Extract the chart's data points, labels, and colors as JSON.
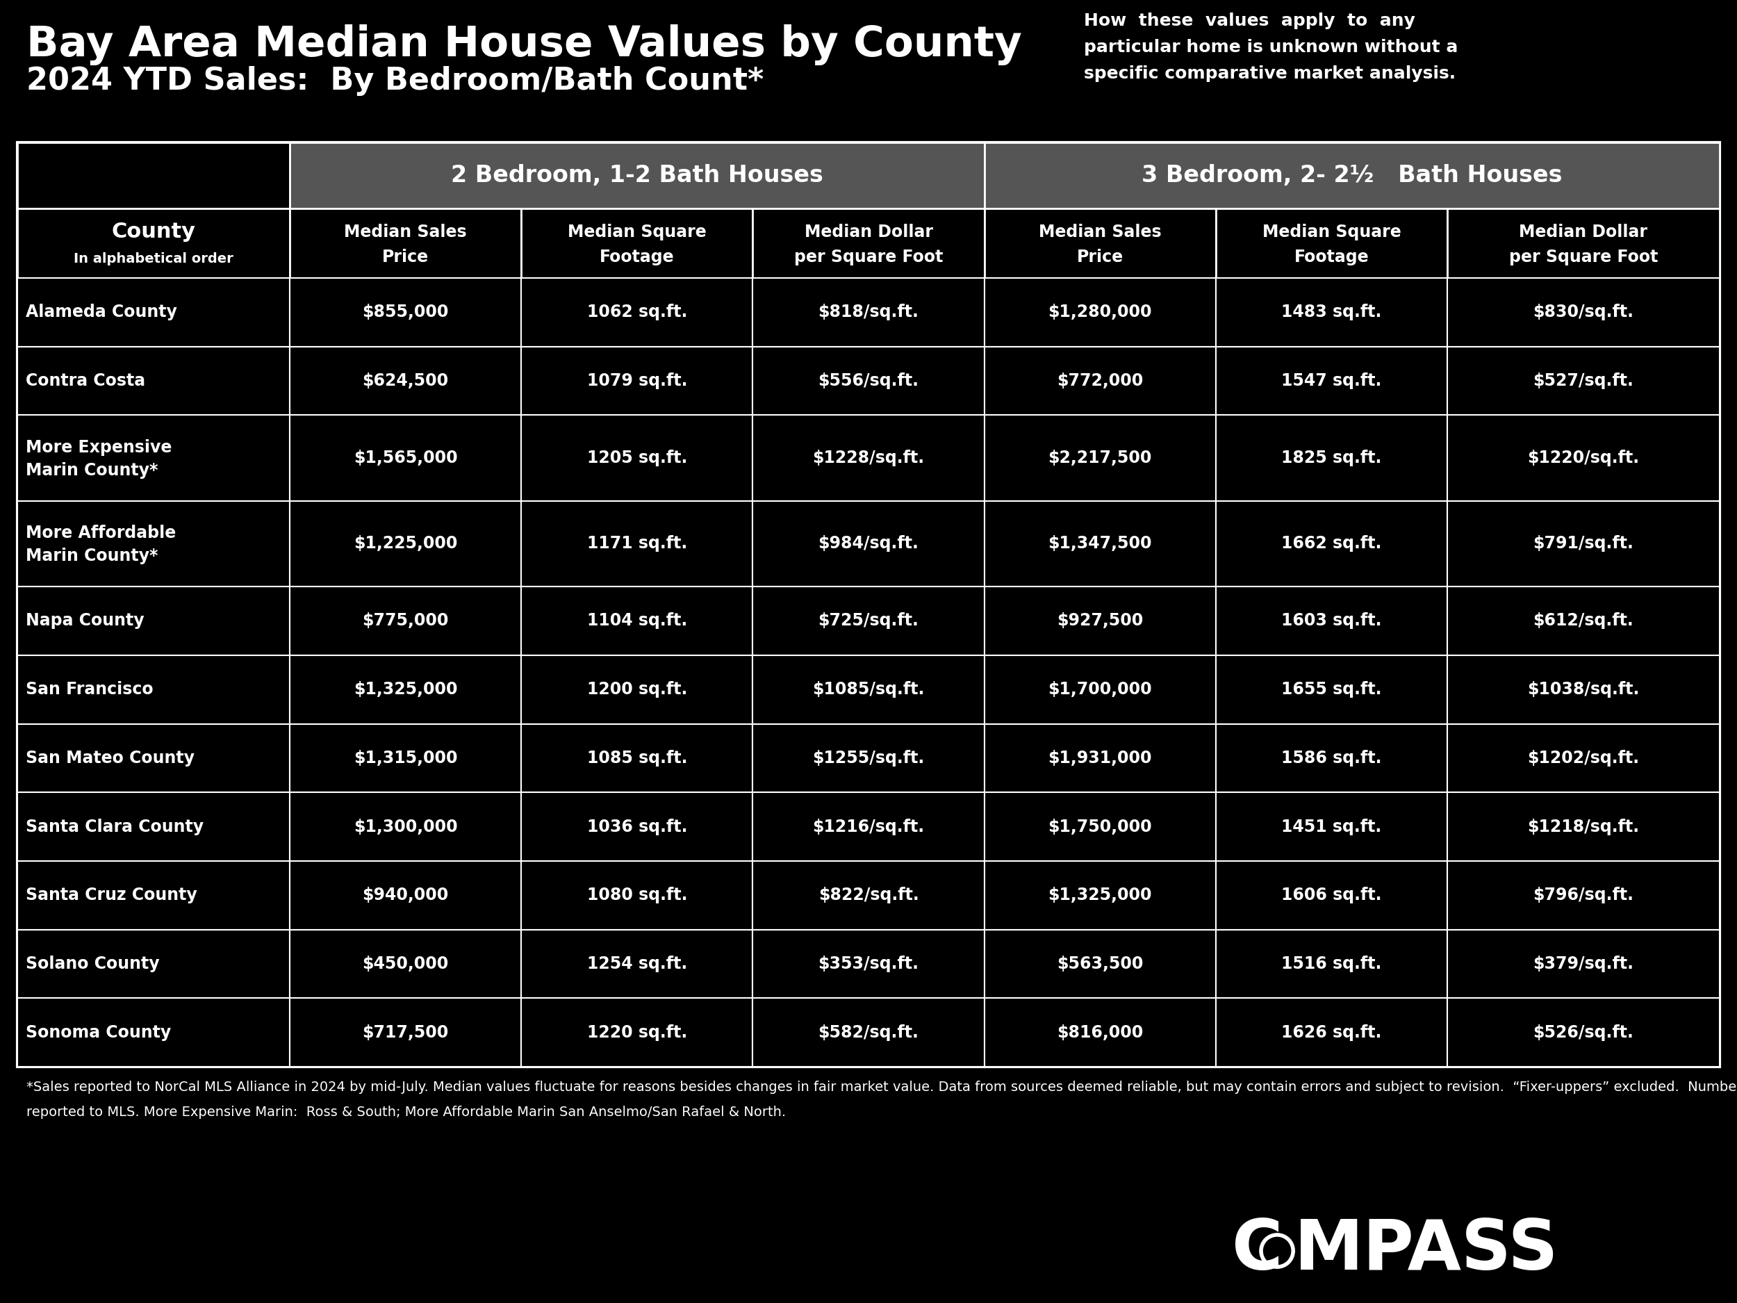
{
  "title_line1": "Bay Area Median House Values by County",
  "title_line2": "2024 YTD Sales:  By Bedroom/Bath Count*",
  "disclaimer": "How  these  values  apply  to  any\nparticular home is unknown without a\nspecific comparative market analysis.",
  "col_header1": "2 Bedroom, 1-2 Bath Houses",
  "col_header2": "3 Bedroom, 2- 2½   Bath Houses",
  "sub_headers": [
    "Median Sales\nPrice",
    "Median Square\nFootage",
    "Median Dollar\nper Square Foot",
    "Median Sales\nPrice",
    "Median Square\nFootage",
    "Median Dollar\nper Square Foot"
  ],
  "rows": [
    {
      "county": "Alameda County",
      "county_line2": "",
      "b2_price": "$855,000",
      "b2_sqft": "1062 sq.ft.",
      "b2_dollar": "$818/sq.ft.",
      "b3_price": "$1,280,000",
      "b3_sqft": "1483 sq.ft.",
      "b3_dollar": "$830/sq.ft."
    },
    {
      "county": "Contra Costa",
      "county_line2": "",
      "b2_price": "$624,500",
      "b2_sqft": "1079 sq.ft.",
      "b2_dollar": "$556/sq.ft.",
      "b3_price": "$772,000",
      "b3_sqft": "1547 sq.ft.",
      "b3_dollar": "$527/sq.ft."
    },
    {
      "county": "More Expensive",
      "county_line2": "Marin County*",
      "b2_price": "$1,565,000",
      "b2_sqft": "1205 sq.ft.",
      "b2_dollar": "$1228/sq.ft.",
      "b3_price": "$2,217,500",
      "b3_sqft": "1825 sq.ft.",
      "b3_dollar": "$1220/sq.ft."
    },
    {
      "county": "More Affordable",
      "county_line2": "Marin County*",
      "b2_price": "$1,225,000",
      "b2_sqft": "1171 sq.ft.",
      "b2_dollar": "$984/sq.ft.",
      "b3_price": "$1,347,500",
      "b3_sqft": "1662 sq.ft.",
      "b3_dollar": "$791/sq.ft."
    },
    {
      "county": "Napa County",
      "county_line2": "",
      "b2_price": "$775,000",
      "b2_sqft": "1104 sq.ft.",
      "b2_dollar": "$725/sq.ft.",
      "b3_price": "$927,500",
      "b3_sqft": "1603 sq.ft.",
      "b3_dollar": "$612/sq.ft."
    },
    {
      "county": "San Francisco",
      "county_line2": "",
      "b2_price": "$1,325,000",
      "b2_sqft": "1200 sq.ft.",
      "b2_dollar": "$1085/sq.ft.",
      "b3_price": "$1,700,000",
      "b3_sqft": "1655 sq.ft.",
      "b3_dollar": "$1038/sq.ft."
    },
    {
      "county": "San Mateo County",
      "county_line2": "",
      "b2_price": "$1,315,000",
      "b2_sqft": "1085 sq.ft.",
      "b2_dollar": "$1255/sq.ft.",
      "b3_price": "$1,931,000",
      "b3_sqft": "1586 sq.ft.",
      "b3_dollar": "$1202/sq.ft."
    },
    {
      "county": "Santa Clara County",
      "county_line2": "",
      "b2_price": "$1,300,000",
      "b2_sqft": "1036 sq.ft.",
      "b2_dollar": "$1216/sq.ft.",
      "b3_price": "$1,750,000",
      "b3_sqft": "1451 sq.ft.",
      "b3_dollar": "$1218/sq.ft."
    },
    {
      "county": "Santa Cruz County",
      "county_line2": "",
      "b2_price": "$940,000",
      "b2_sqft": "1080 sq.ft.",
      "b2_dollar": "$822/sq.ft.",
      "b3_price": "$1,325,000",
      "b3_sqft": "1606 sq.ft.",
      "b3_dollar": "$796/sq.ft."
    },
    {
      "county": "Solano County",
      "county_line2": "",
      "b2_price": "$450,000",
      "b2_sqft": "1254 sq.ft.",
      "b2_dollar": "$353/sq.ft.",
      "b3_price": "$563,500",
      "b3_sqft": "1516 sq.ft.",
      "b3_dollar": "$379/sq.ft."
    },
    {
      "county": "Sonoma County",
      "county_line2": "",
      "b2_price": "$717,500",
      "b2_sqft": "1220 sq.ft.",
      "b2_dollar": "$582/sq.ft.",
      "b3_price": "$816,000",
      "b3_sqft": "1626 sq.ft.",
      "b3_dollar": "$526/sq.ft."
    }
  ],
  "footnote": "*Sales reported to NorCal MLS Alliance in 2024 by mid-July. Median values fluctuate for reasons besides changes in fair market value. Data from sources deemed reliable, but may contain errors and subject to revision.  “Fixer-uppers” excluded.  Numbers approximate, and data constantly changes as new sales occur. Not all sales are\nreported to MLS. More Expensive Marin:  Ross & South; More Affordable Marin San Anselmo/San Rafael & North.",
  "bg_color": "#000000",
  "text_color": "#ffffff",
  "header_bg": "#555555",
  "border_color": "#ffffff"
}
